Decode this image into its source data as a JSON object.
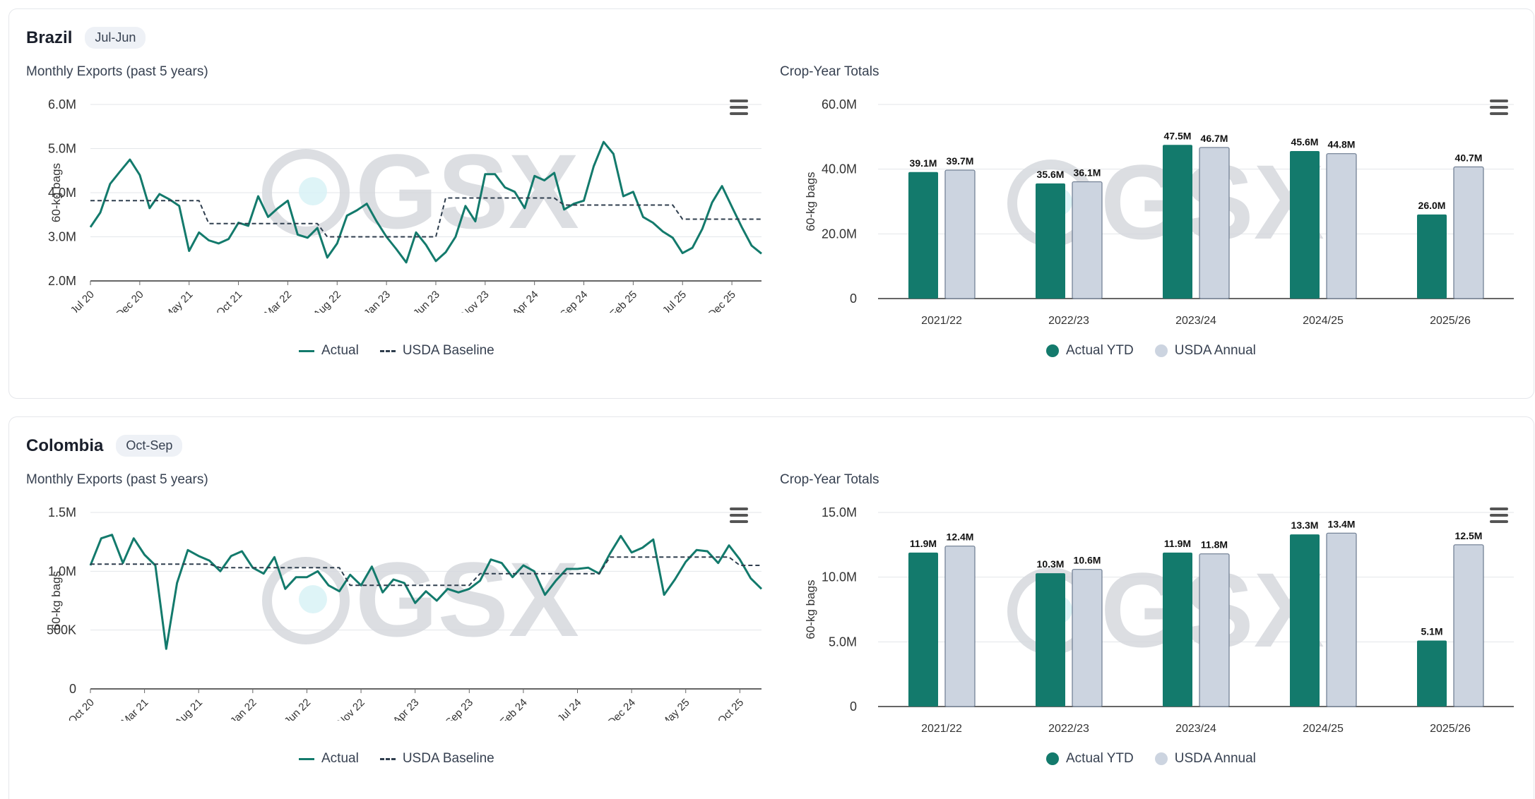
{
  "colors": {
    "actual": "#137a6c",
    "usda": "#ccd4e0",
    "usda_stroke": "#6b7a8f",
    "baseline": "#2f3e4e",
    "grid": "#e3e6ea",
    "watermark": "#d6d9de"
  },
  "watermark_text": "GSX",
  "sections": [
    {
      "country": "Brazil",
      "season": "Jul-Jun",
      "line_title": "Monthly Exports (past 5 years)",
      "bar_title": "Crop-Year Totals",
      "legend": {
        "actual": "Actual",
        "baseline": "USDA Baseline",
        "actual_ytd": "Actual YTD",
        "usda_annual": "USDA Annual"
      }
    },
    {
      "country": "Colombia",
      "season": "Oct-Sep",
      "line_title": "Monthly Exports (past 5 years)",
      "bar_title": "Crop-Year Totals",
      "legend": {
        "actual": "Actual",
        "baseline": "USDA Baseline",
        "actual_ytd": "Actual YTD",
        "usda_annual": "USDA Annual"
      }
    }
  ],
  "chart_data": [
    {
      "id": "brazil-monthly",
      "type": "line",
      "title": "Monthly Exports (past 5 years)",
      "ylabel": "60-kg bags",
      "ylim": [
        2.0,
        6.0
      ],
      "yticks": [
        2.0,
        3.0,
        4.0,
        5.0,
        6.0
      ],
      "ytick_labels": [
        "2.0M",
        "3.0M",
        "4.0M",
        "5.0M",
        "6.0M"
      ],
      "xtick_labels": [
        "Jul 20",
        "Dec 20",
        "May 21",
        "Oct 21",
        "Mar 22",
        "Aug 22",
        "Jan 23",
        "Jun 23",
        "Nov 23",
        "Apr 24",
        "Sep 24",
        "Feb 25",
        "Jul 25",
        "Dec 25"
      ],
      "xtick_step": 5,
      "series": [
        {
          "name": "Actual",
          "style": "solid",
          "values": [
            3.22,
            3.55,
            4.2,
            4.48,
            4.75,
            4.4,
            3.65,
            3.97,
            3.85,
            3.7,
            2.68,
            3.1,
            2.92,
            2.85,
            2.95,
            3.32,
            3.25,
            3.92,
            3.45,
            3.65,
            3.82,
            3.05,
            2.98,
            3.2,
            2.53,
            2.85,
            3.48,
            3.6,
            3.75,
            3.35,
            3.0,
            2.72,
            2.42,
            3.1,
            2.82,
            2.45,
            2.65,
            3.0,
            3.7,
            3.35,
            4.42,
            4.42,
            4.12,
            4.02,
            3.65,
            4.38,
            4.28,
            4.45,
            3.62,
            3.75,
            3.82,
            4.6,
            5.15,
            4.88,
            3.92,
            4.02,
            3.45,
            3.32,
            3.12,
            2.98,
            2.63,
            2.75,
            3.18,
            3.78,
            4.15,
            3.68,
            3.22,
            2.8,
            2.62
          ]
        },
        {
          "name": "USDA Baseline",
          "style": "dashed",
          "values": [
            3.82,
            3.82,
            3.82,
            3.82,
            3.82,
            3.82,
            3.82,
            3.82,
            3.82,
            3.82,
            3.82,
            3.82,
            3.3,
            3.3,
            3.3,
            3.3,
            3.3,
            3.3,
            3.3,
            3.3,
            3.3,
            3.3,
            3.3,
            3.3,
            3.0,
            3.0,
            3.0,
            3.0,
            3.0,
            3.0,
            3.0,
            3.0,
            3.0,
            3.0,
            3.0,
            3.0,
            3.88,
            3.88,
            3.88,
            3.88,
            3.88,
            3.88,
            3.88,
            3.88,
            3.88,
            3.88,
            3.88,
            3.88,
            3.72,
            3.72,
            3.72,
            3.72,
            3.72,
            3.72,
            3.72,
            3.72,
            3.72,
            3.72,
            3.72,
            3.72,
            3.4,
            3.4,
            3.4,
            3.4,
            3.4,
            3.4,
            3.4,
            3.4,
            3.4
          ]
        }
      ]
    },
    {
      "id": "brazil-cropyear",
      "type": "bar",
      "title": "Crop-Year Totals",
      "ylabel": "60-kg bags",
      "ylim": [
        0,
        60
      ],
      "yticks": [
        0,
        20,
        40,
        60
      ],
      "ytick_labels": [
        "0",
        "20.0M",
        "40.0M",
        "60.0M"
      ],
      "categories": [
        "2021/22",
        "2022/23",
        "2023/24",
        "2024/25",
        "2025/26"
      ],
      "series": [
        {
          "name": "Actual YTD",
          "values": [
            39.1,
            35.6,
            47.5,
            45.6,
            26.0
          ],
          "labels": [
            "39.1M",
            "35.6M",
            "47.5M",
            "45.6M",
            "26.0M"
          ]
        },
        {
          "name": "USDA Annual",
          "values": [
            39.7,
            36.1,
            46.7,
            44.8,
            40.7
          ],
          "labels": [
            "39.7M",
            "36.1M",
            "46.7M",
            "44.8M",
            "40.7M"
          ]
        }
      ]
    },
    {
      "id": "colombia-monthly",
      "type": "line",
      "title": "Monthly Exports (past 5 years)",
      "ylabel": "60-kg bags",
      "ylim": [
        0,
        1.5
      ],
      "yticks": [
        0,
        0.5,
        1.0,
        1.5
      ],
      "ytick_labels": [
        "0",
        "500K",
        "1.0M",
        "1.5M"
      ],
      "xtick_labels": [
        "Oct 20",
        "Mar 21",
        "Aug 21",
        "Jan 22",
        "Jun 22",
        "Nov 22",
        "Apr 23",
        "Sep 23",
        "Feb 24",
        "Jul 24",
        "Dec 24",
        "May 25",
        "Oct 25"
      ],
      "xtick_step": 5,
      "series": [
        {
          "name": "Actual",
          "style": "solid",
          "values": [
            1.05,
            1.28,
            1.31,
            1.07,
            1.28,
            1.14,
            1.05,
            0.34,
            0.9,
            1.18,
            1.13,
            1.09,
            1.0,
            1.13,
            1.17,
            1.03,
            0.98,
            1.12,
            0.85,
            0.95,
            0.95,
            1.0,
            0.88,
            0.83,
            0.97,
            0.88,
            1.04,
            0.82,
            0.93,
            0.9,
            0.73,
            0.83,
            0.75,
            0.85,
            0.82,
            0.85,
            0.92,
            1.1,
            1.07,
            0.95,
            1.05,
            1.0,
            0.8,
            0.92,
            1.02,
            1.02,
            1.03,
            0.98,
            1.15,
            1.3,
            1.16,
            1.2,
            1.27,
            0.8,
            0.93,
            1.08,
            1.18,
            1.17,
            1.07,
            1.22,
            1.1,
            0.94,
            0.85
          ]
        },
        {
          "name": "USDA Baseline",
          "style": "dashed",
          "values": [
            1.06,
            1.06,
            1.06,
            1.06,
            1.06,
            1.06,
            1.06,
            1.06,
            1.06,
            1.06,
            1.06,
            1.06,
            1.03,
            1.03,
            1.03,
            1.03,
            1.03,
            1.03,
            1.03,
            1.03,
            1.03,
            1.03,
            1.03,
            1.03,
            0.88,
            0.88,
            0.88,
            0.88,
            0.88,
            0.88,
            0.88,
            0.88,
            0.88,
            0.88,
            0.88,
            0.88,
            0.98,
            0.98,
            0.98,
            0.98,
            0.98,
            0.98,
            0.98,
            0.98,
            0.98,
            0.98,
            0.98,
            0.98,
            1.12,
            1.12,
            1.12,
            1.12,
            1.12,
            1.12,
            1.12,
            1.12,
            1.12,
            1.12,
            1.12,
            1.12,
            1.05,
            1.05,
            1.05
          ]
        }
      ]
    },
    {
      "id": "colombia-cropyear",
      "type": "bar",
      "title": "Crop-Year Totals",
      "ylabel": "60-kg bags",
      "ylim": [
        0,
        15
      ],
      "yticks": [
        0,
        5,
        10,
        15
      ],
      "ytick_labels": [
        "0",
        "5.0M",
        "10.0M",
        "15.0M"
      ],
      "categories": [
        "2021/22",
        "2022/23",
        "2023/24",
        "2024/25",
        "2025/26"
      ],
      "series": [
        {
          "name": "Actual YTD",
          "values": [
            11.9,
            10.3,
            11.9,
            13.3,
            5.1
          ],
          "labels": [
            "11.9M",
            "10.3M",
            "11.9M",
            "13.3M",
            "5.1M"
          ]
        },
        {
          "name": "USDA Annual",
          "values": [
            12.4,
            10.6,
            11.8,
            13.4,
            12.5
          ],
          "labels": [
            "12.4M",
            "10.6M",
            "11.8M",
            "13.4M",
            "12.5M"
          ]
        }
      ]
    }
  ]
}
